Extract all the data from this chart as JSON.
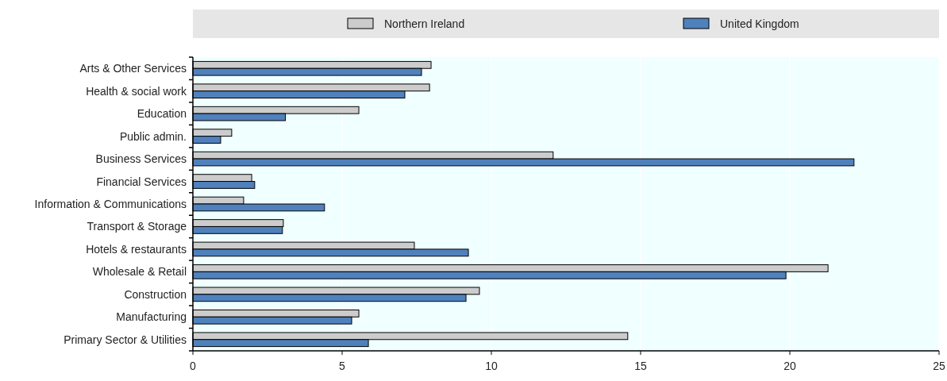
{
  "chart_data": {
    "type": "bar",
    "orientation": "horizontal",
    "categories": [
      "Arts & Other Services",
      "Health & social work",
      "Education",
      "Public admin.",
      "Business Services",
      "Financial Services",
      "Information & Communications",
      "Transport & Storage",
      "Hotels & restaurants",
      "Wholesale & Retail",
      "Construction",
      "Manufacturing",
      "Primary Sector & Utilities"
    ],
    "series": [
      {
        "name": "Northern Ireland",
        "color": "#cccccc",
        "values": [
          7.98,
          7.93,
          5.56,
          1.3,
          12.07,
          1.97,
          1.7,
          3.03,
          7.42,
          21.28,
          9.6,
          5.56,
          14.57
        ]
      },
      {
        "name": "United Kingdom",
        "color": "#4f81bd",
        "values": [
          7.66,
          7.1,
          3.1,
          0.93,
          22.15,
          2.07,
          4.41,
          3.0,
          9.23,
          19.87,
          9.15,
          5.32,
          5.88
        ]
      }
    ],
    "xlim": [
      0,
      25
    ],
    "xticks": [
      0,
      5,
      10,
      15,
      20,
      25
    ],
    "grid": "x",
    "legend": "top"
  }
}
